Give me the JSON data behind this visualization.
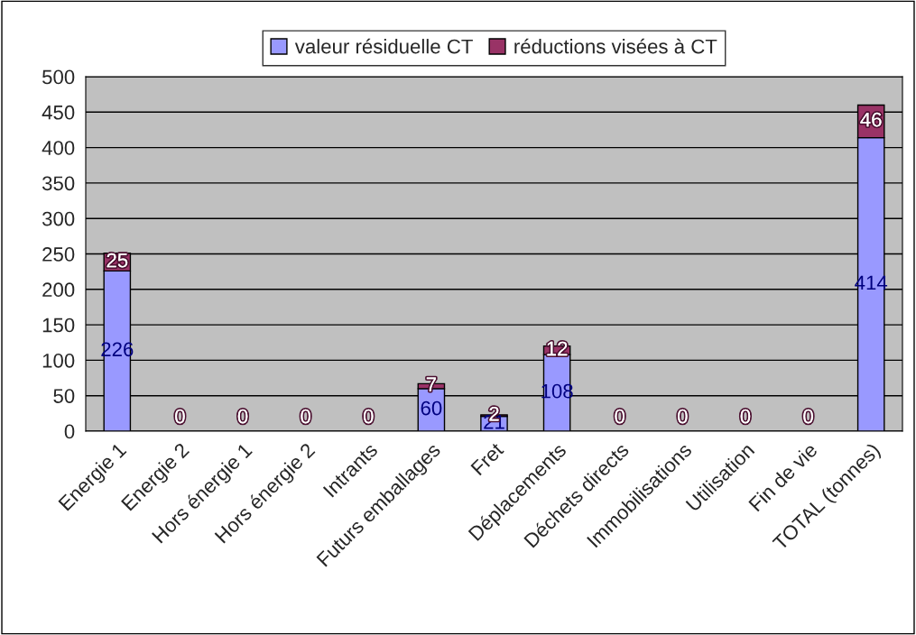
{
  "chart_data": {
    "type": "bar",
    "stacked": true,
    "categories": [
      "Energie 1",
      "Energie 2",
      "Hors énergie 1",
      "Hors énergie 2",
      "Intrants",
      "Futurs emballages",
      "Fret",
      "Déplacements",
      "Déchets directs",
      "Immobilisations",
      "Utilisation",
      "Fin de vie",
      "TOTAL (tonnes)"
    ],
    "series": [
      {
        "name": "valeur résiduelle CT",
        "color": "#9999ff",
        "values": [
          226,
          0,
          0,
          0,
          0,
          60,
          21,
          108,
          0,
          0,
          0,
          0,
          414
        ],
        "value_labels": [
          "226",
          null,
          null,
          null,
          null,
          "60",
          "21",
          "108",
          null,
          null,
          null,
          null,
          "414"
        ]
      },
      {
        "name": "réductions visées à CT",
        "color": "#993366",
        "values": [
          25,
          0,
          0,
          0,
          0,
          7,
          2,
          12,
          0,
          0,
          0,
          0,
          46
        ],
        "value_labels": [
          "25",
          "0",
          "0",
          "0",
          "0",
          "7",
          "2",
          "12",
          "0",
          "0",
          "0",
          "0",
          "46"
        ]
      }
    ],
    "ylim": [
      0,
      500
    ],
    "yticks": [
      0,
      50,
      100,
      150,
      200,
      250,
      300,
      350,
      400,
      450,
      500
    ],
    "grid": "y",
    "legend": "top"
  }
}
